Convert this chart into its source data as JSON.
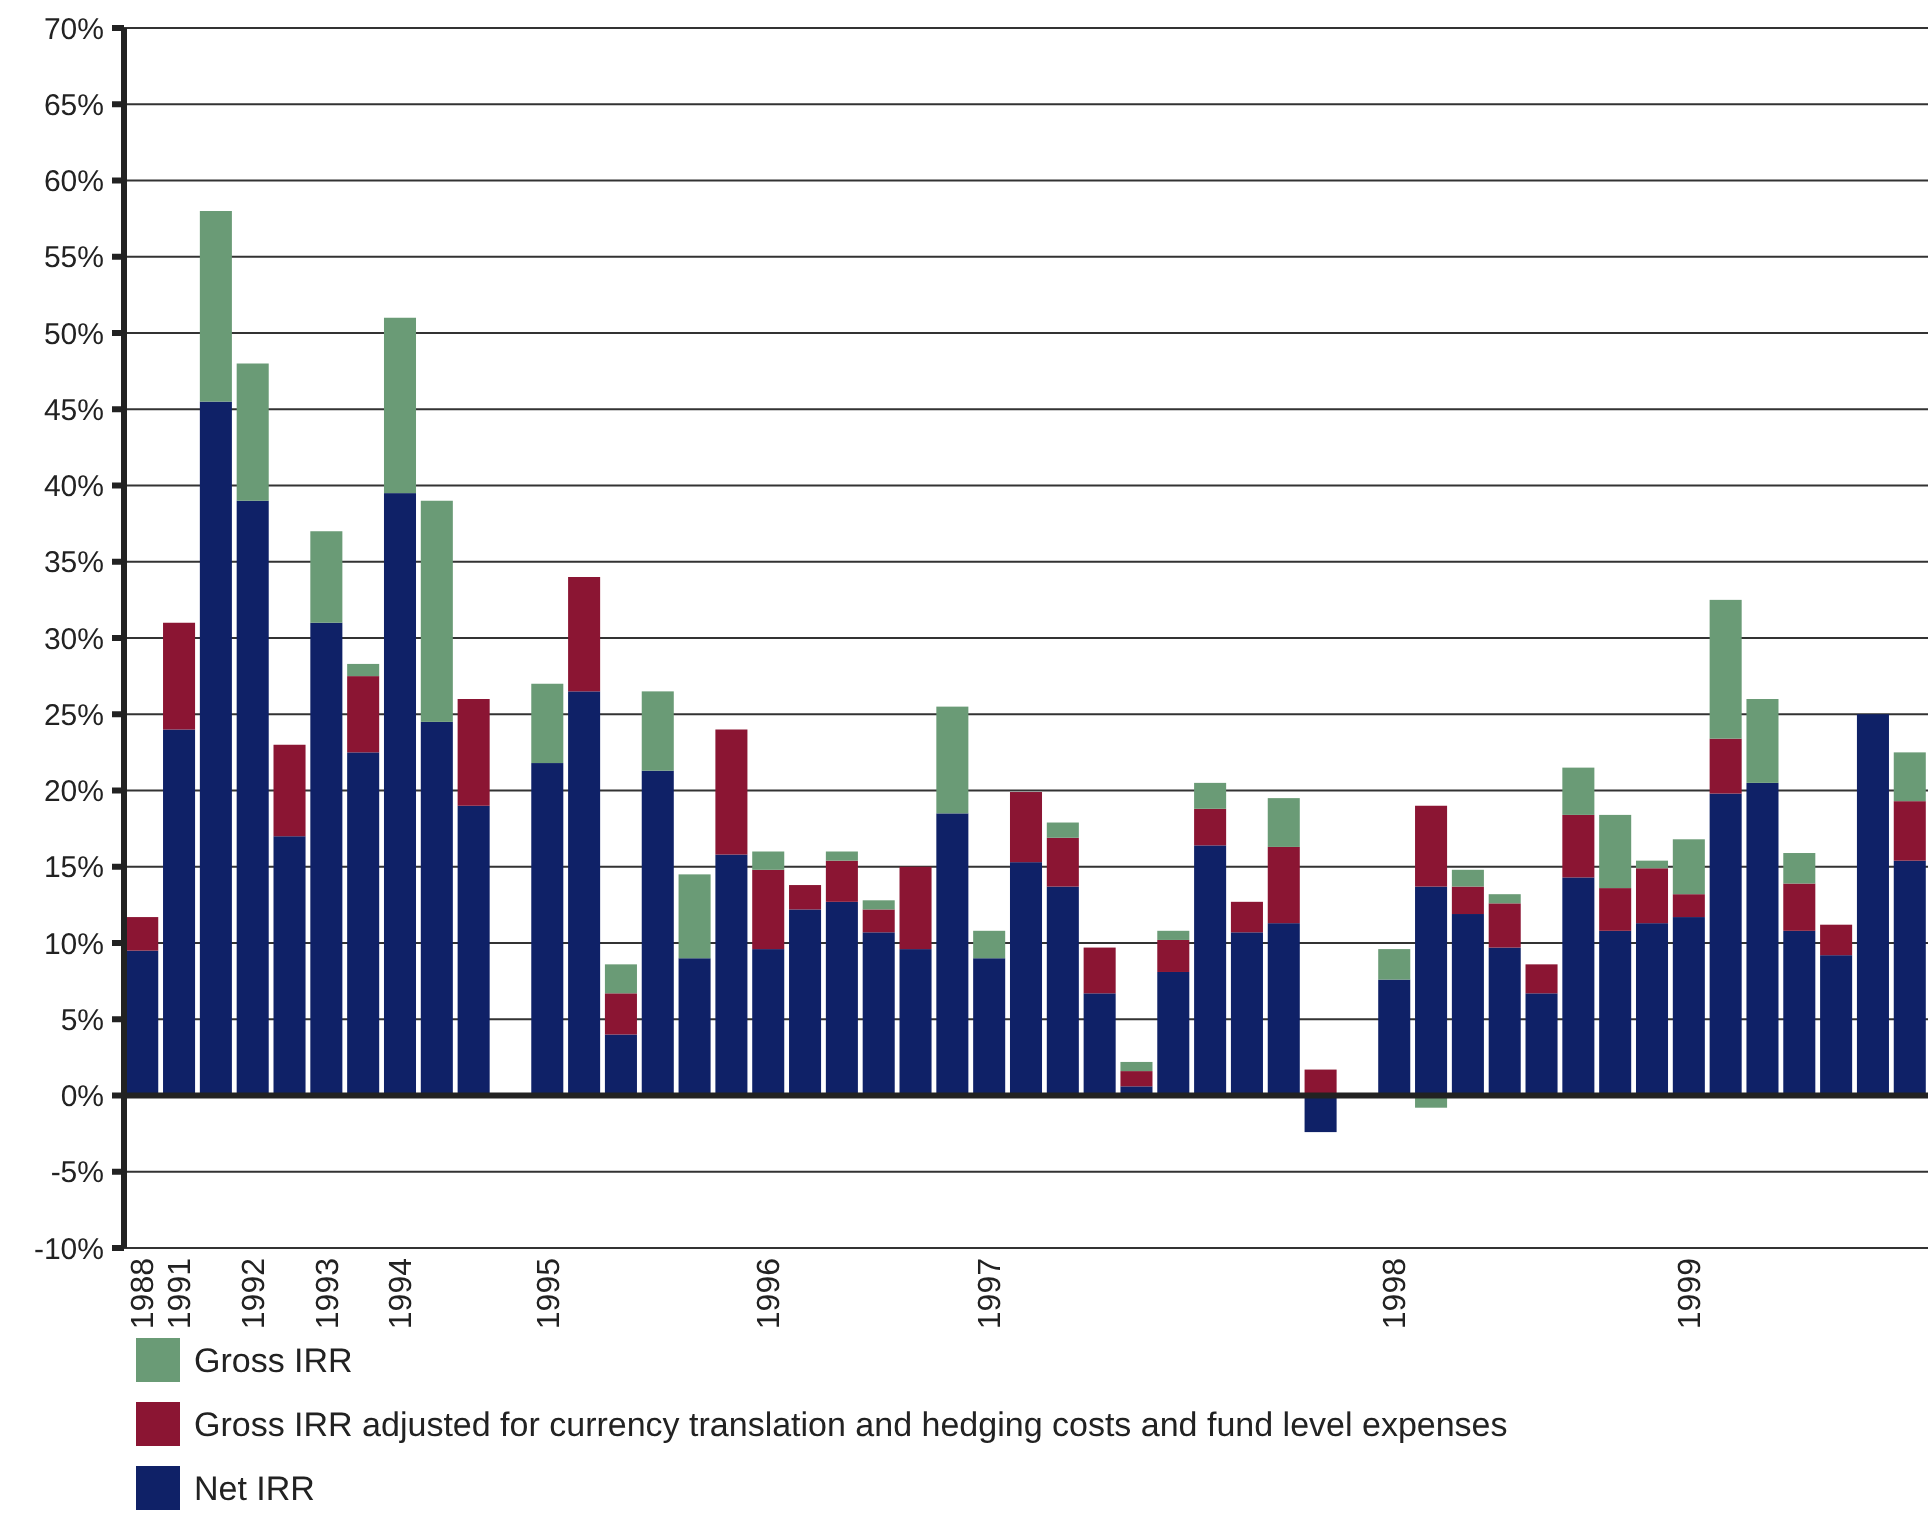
{
  "chart_data": {
    "type": "bar",
    "stacked": true,
    "legend": "bottom",
    "grid": "y",
    "categories": [
      "1988",
      "1991",
      null,
      "1992",
      null,
      "1993",
      null,
      "1994",
      null,
      null,
      null,
      "1995",
      null,
      null,
      null,
      null,
      null,
      "1996",
      null,
      null,
      null,
      null,
      null,
      "1997",
      null,
      null,
      null,
      null,
      null,
      null,
      null,
      null,
      null,
      null,
      "1998",
      null,
      null,
      null,
      null,
      null,
      null,
      null,
      "1999",
      null,
      null,
      null,
      null,
      null,
      null
    ],
    "ylim": [
      -10,
      70
    ],
    "yticks": [
      {
        "value": -10,
        "label": "-10%"
      },
      {
        "value": -5,
        "label": "-5%"
      },
      {
        "value": 0,
        "label": "0%"
      },
      {
        "value": 5,
        "label": "5%"
      },
      {
        "value": 10,
        "label": "10%"
      },
      {
        "value": 15,
        "label": "15%"
      },
      {
        "value": 20,
        "label": "20%"
      },
      {
        "value": 25,
        "label": "25%"
      },
      {
        "value": 30,
        "label": "30%"
      },
      {
        "value": 35,
        "label": "35%"
      },
      {
        "value": 40,
        "label": "40%"
      },
      {
        "value": 45,
        "label": "45%"
      },
      {
        "value": 50,
        "label": "50%"
      },
      {
        "value": 55,
        "label": "55%"
      },
      {
        "value": 60,
        "label": "60%"
      },
      {
        "value": 65,
        "label": "65%"
      },
      {
        "value": 70,
        "label": "70%"
      }
    ],
    "series": [
      {
        "name": "Net IRR",
        "color": "#0f2167",
        "values": [
          9.5,
          24,
          45.5,
          39,
          17,
          31,
          22.5,
          39.5,
          24.5,
          19,
          null,
          21.8,
          26.5,
          4,
          21.3,
          9,
          15.8,
          9.6,
          12.2,
          12.7,
          10.7,
          9.6,
          18.5,
          9,
          15.3,
          13.7,
          6.7,
          0.6,
          8.1,
          16.4,
          10.7,
          11.3,
          -2.4,
          null,
          7.6,
          13.7,
          11.9,
          9.7,
          6.7,
          14.3,
          10.8,
          11.3,
          11.7,
          19.8,
          20.5,
          10.8,
          9.2,
          25,
          15.4
        ]
      },
      {
        "name": "Gross IRR adjusted for currency translation and hedging costs and fund level expenses",
        "color": "#8b1533",
        "values": [
          2.2,
          7,
          null,
          null,
          6,
          null,
          5,
          null,
          null,
          7,
          null,
          null,
          7.5,
          2.7,
          null,
          null,
          8.2,
          5.2,
          1.6,
          2.7,
          1.5,
          5.4,
          null,
          null,
          4.6,
          3.2,
          3,
          1,
          2.1,
          2.4,
          2,
          5,
          1.7,
          null,
          null,
          5.3,
          1.8,
          2.9,
          1.9,
          4.1,
          2.8,
          3.6,
          1.5,
          3.6,
          null,
          3.1,
          2,
          null,
          3.9
        ]
      },
      {
        "name": "Gross IRR",
        "color": "#6a9b76",
        "values": [
          null,
          null,
          12.5,
          9,
          null,
          6,
          0.8,
          11.5,
          14.5,
          null,
          null,
          5.2,
          null,
          1.9,
          5.2,
          5.5,
          null,
          1.2,
          null,
          0.6,
          0.6,
          null,
          7,
          1.8,
          null,
          1,
          null,
          0.6,
          0.6,
          1.7,
          null,
          3.2,
          null,
          null,
          2,
          -0.8,
          1.1,
          0.6,
          null,
          3.1,
          4.8,
          0.5,
          3.6,
          9.1,
          5.5,
          2,
          null,
          null,
          3.2
        ]
      }
    ]
  }
}
